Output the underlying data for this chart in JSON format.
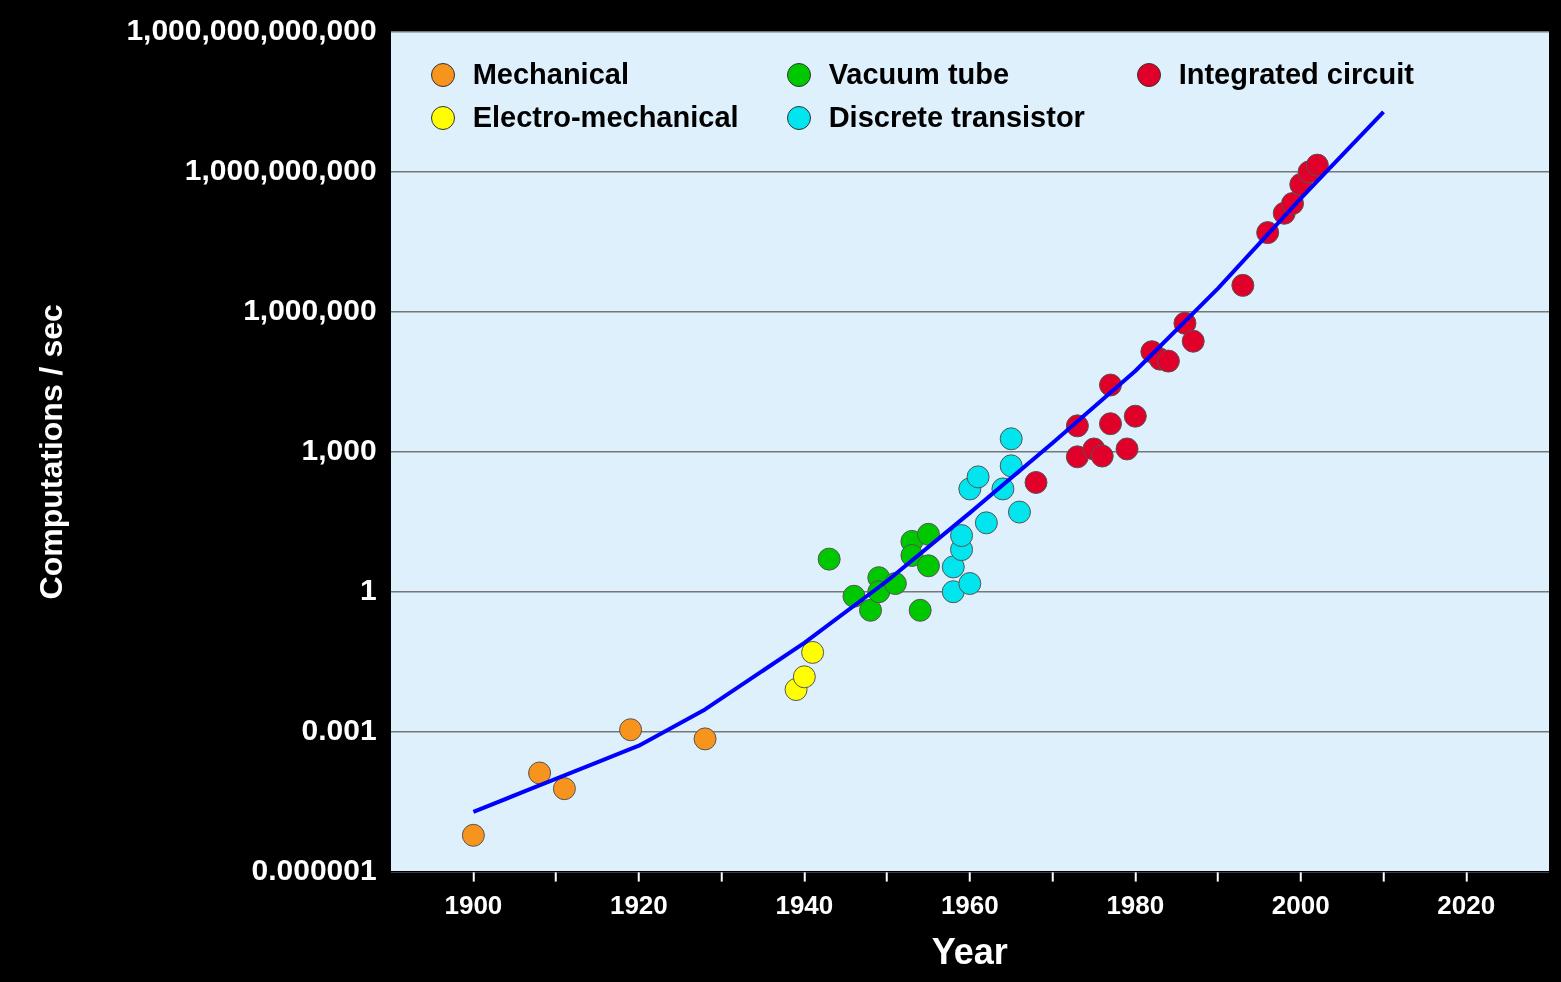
{
  "chart_data": {
    "type": "scatter",
    "xlabel": "Year",
    "ylabel": "Computations / sec",
    "log": "y",
    "grid": "y",
    "legend": "top left",
    "marker": "circle",
    "xlim": [
      1890,
      2030
    ],
    "xticks": [
      1900,
      {
        "value": 1910,
        "label": null
      },
      1920,
      {
        "value": 1930,
        "label": null
      },
      1940,
      {
        "value": 1950,
        "label": null
      },
      1960,
      {
        "value": 1970,
        "label": null
      },
      1980,
      {
        "value": 1990,
        "label": null
      },
      2000,
      {
        "value": 2010,
        "label": null
      },
      2020
    ],
    "ylim": [
      1e-06,
      1000000000000
    ],
    "yticks": [
      {
        "value": 1e-06,
        "label": "0.000001"
      },
      {
        "value": 0.001,
        "label": "0.001"
      },
      {
        "value": 1,
        "label": "1"
      },
      {
        "value": 1000,
        "label": "1,000"
      },
      {
        "value": 1000000,
        "label": "1,000,000"
      },
      {
        "value": 1000000000,
        "label": "1,000,000,000"
      },
      {
        "value": 1000000000000,
        "label": "1,000,000,000,000"
      }
    ],
    "series": [
      {
        "name": "Mechanical",
        "color": "#f7941d",
        "x": [
          1900,
          1908,
          1911,
          1919,
          1928
        ],
        "values": [
          6e-06,
          0.00013,
          6e-05,
          0.0011,
          0.0007
        ]
      },
      {
        "name": "Electro-mechanical",
        "color": "#ffff00",
        "x": [
          1939,
          1940,
          1941
        ],
        "values": [
          0.008,
          0.015,
          0.05
        ]
      },
      {
        "name": "Vacuum tube",
        "color": "#00c800",
        "x": [
          1943,
          1946,
          1948,
          1949,
          1949,
          1951,
          1953,
          1953,
          1954,
          1955,
          1955
        ],
        "values": [
          5,
          0.8,
          0.4,
          2,
          1,
          1.5,
          12,
          6,
          0.4,
          17,
          3.6
        ]
      },
      {
        "name": "Discrete transistor",
        "color": "#00e5ee",
        "x": [
          1958,
          1958,
          1959,
          1959,
          1960,
          1960,
          1961,
          1962,
          1964,
          1965,
          1965,
          1966
        ],
        "values": [
          1,
          3.4,
          8,
          16,
          1.5,
          160,
          290,
          30,
          160,
          500,
          1900,
          51
        ]
      },
      {
        "name": "Integrated circuit",
        "color": "#e0002a",
        "x": [
          1968,
          1973,
          1973,
          1975,
          1976,
          1977,
          1977,
          1979,
          1980,
          1982,
          1983,
          1984,
          1986,
          1987,
          1993,
          1996,
          1998,
          1999,
          2000,
          2001,
          2002
        ],
        "values": [
          220,
          780,
          3600,
          1150,
          810,
          4000,
          27000,
          1150,
          5800,
          140000,
          97000,
          88000,
          570000,
          235000,
          3700000,
          50000000,
          130000000,
          210000000,
          540000000,
          1000000000,
          1400000000
        ]
      },
      {
        "type": "line",
        "color": "#0000ff",
        "marker": "none",
        "x": [
          1900,
          1907,
          1920,
          1928,
          1940,
          1950,
          1960,
          1970,
          1980,
          1990,
          2000,
          2010
        ],
        "values": [
          1.9e-05,
          6e-05,
          0.0005,
          0.003,
          0.08,
          1.7,
          49,
          1550,
          54000,
          3200000,
          270000000,
          19500000000
        ]
      }
    ]
  }
}
